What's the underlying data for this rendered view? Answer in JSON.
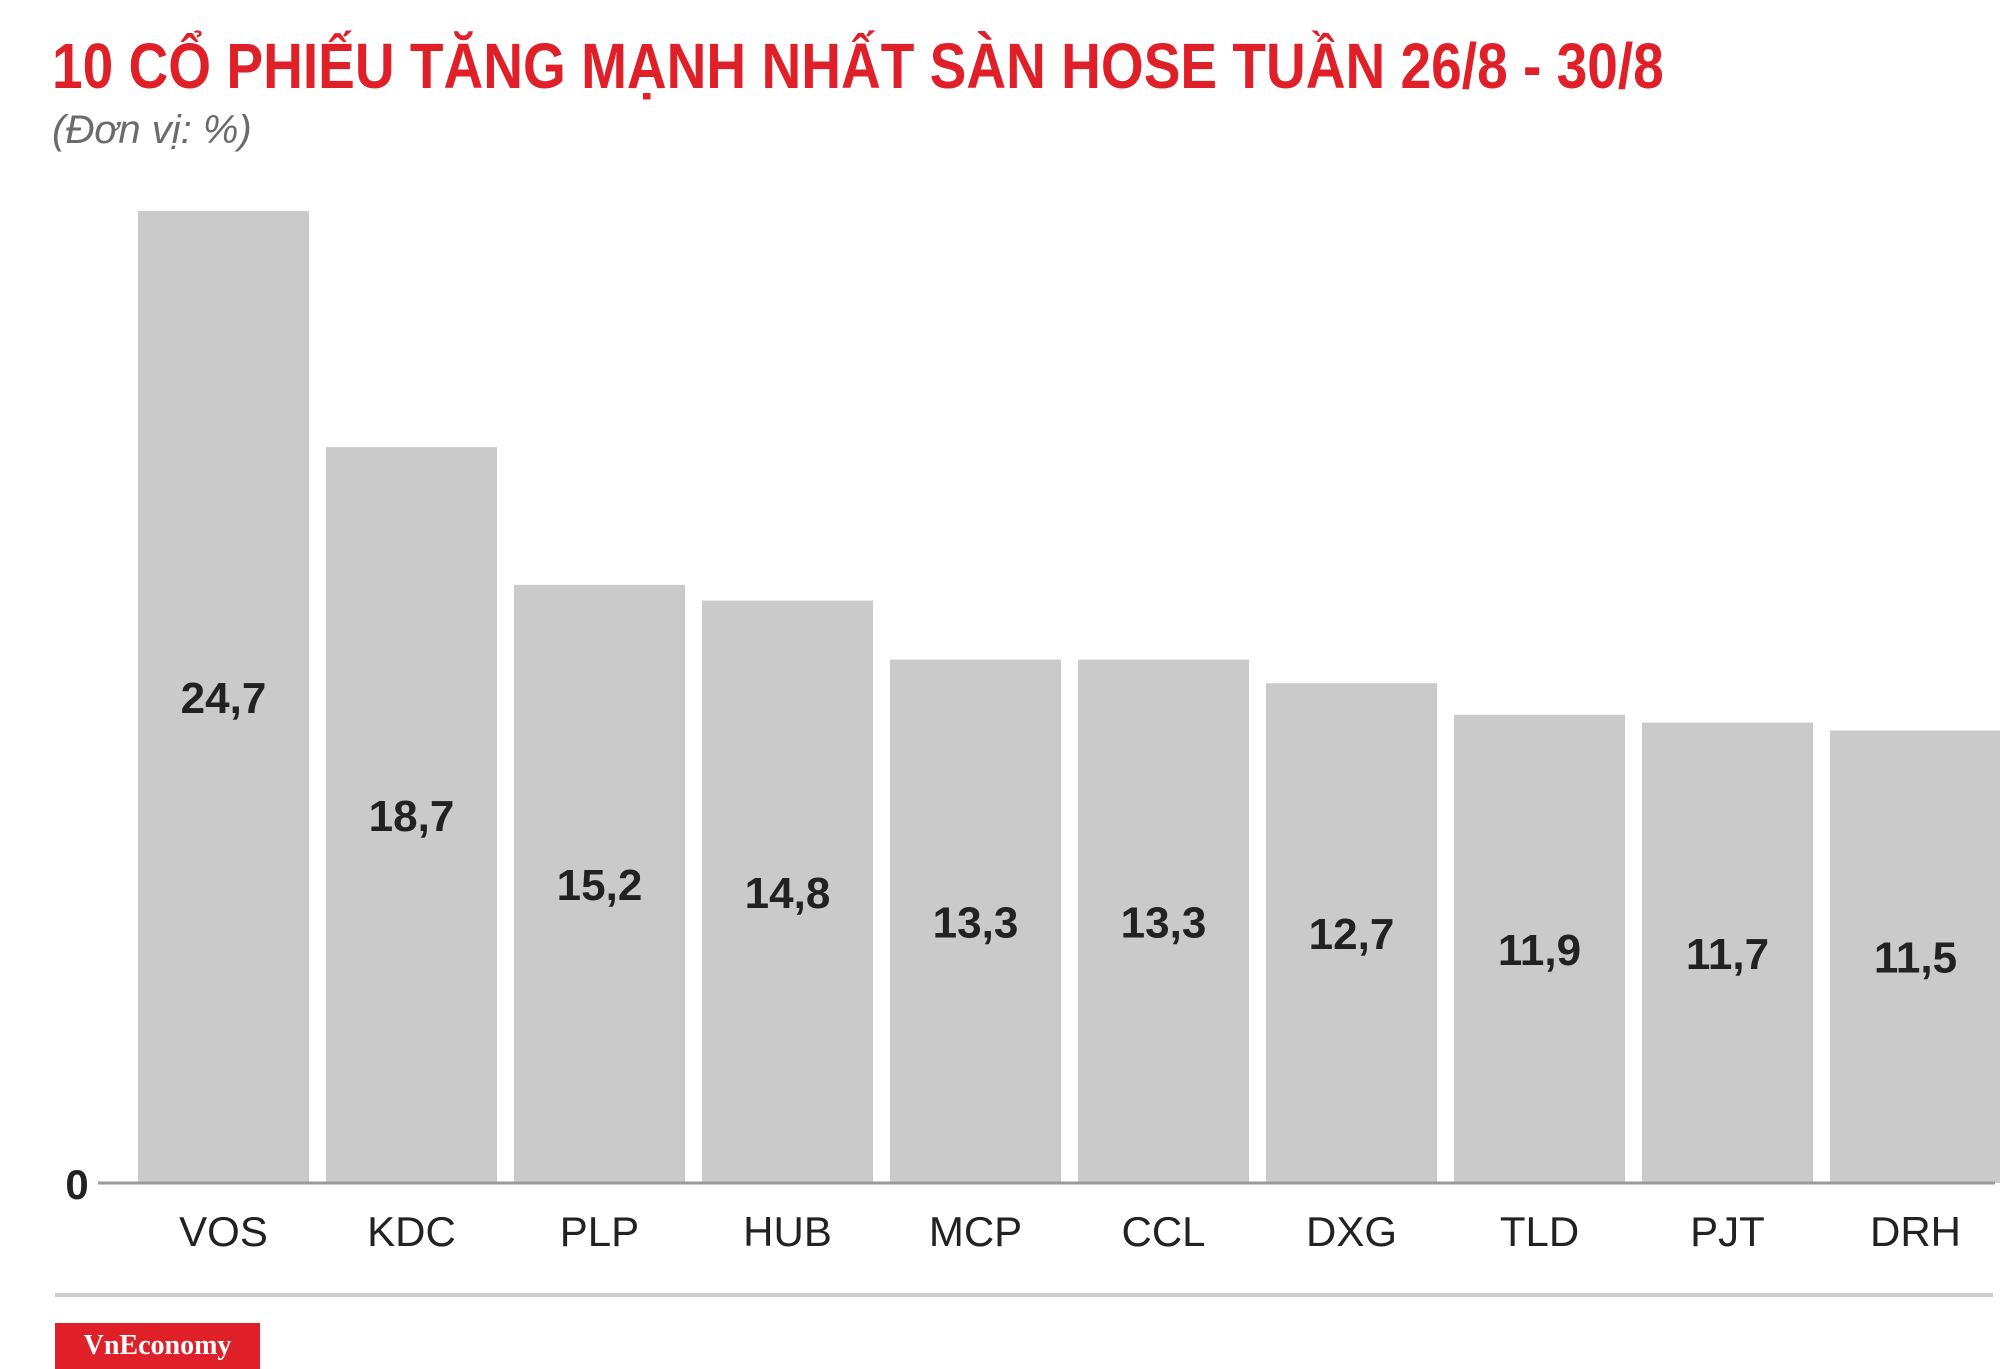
{
  "header": {
    "title": "10 CỔ PHIẾU TĂNG MẠNH NHẤT SÀN HOSE TUẦN 26/8 - 30/8",
    "subtitle": "(Đơn vị: %)"
  },
  "chart_data": {
    "type": "bar",
    "title": "10 CỔ PHIẾU TĂNG MẠNH NHẤT SÀN HOSE TUẦN 26/8 - 30/8",
    "subtitle": "(Đơn vị: %)",
    "xlabel": "",
    "ylabel": "",
    "categories": [
      "VOS",
      "KDC",
      "PLP",
      "HUB",
      "MCP",
      "CCL",
      "DXG",
      "TLD",
      "PJT",
      "DRH"
    ],
    "values": [
      24.7,
      18.7,
      15.2,
      14.8,
      13.3,
      13.3,
      12.7,
      11.9,
      11.7,
      11.5
    ],
    "value_labels": [
      "24,7",
      "18,7",
      "15,2",
      "14,8",
      "13,3",
      "13,3",
      "12,7",
      "11,9",
      "11,7",
      "11,5"
    ],
    "ylim": [
      0,
      24.7
    ],
    "y_tick_labels": [
      "0"
    ],
    "grid": false,
    "legend": "none",
    "bar_color": "#cbcacb",
    "value_label_color": "#222222"
  },
  "footer": {
    "brand": "VnEconomy",
    "brand_color": "#e02028"
  }
}
